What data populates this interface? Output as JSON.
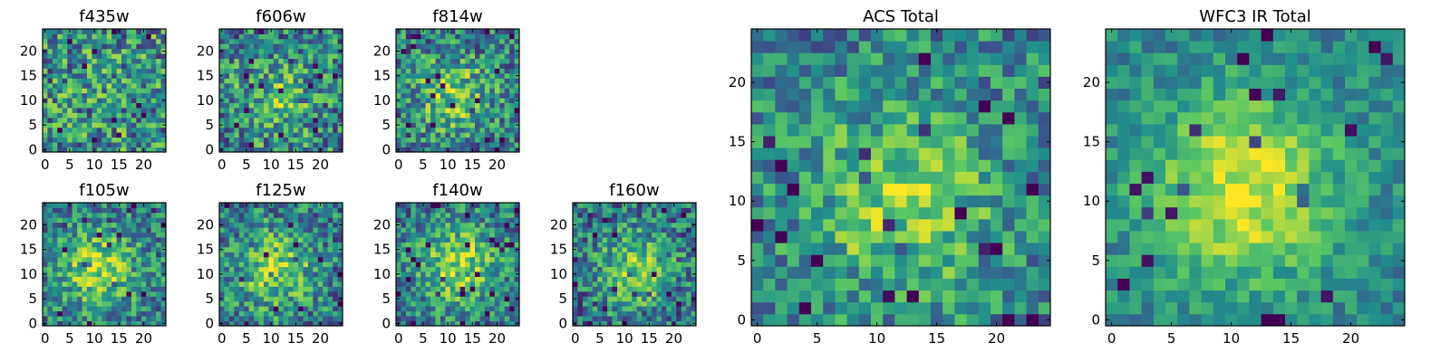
{
  "figure": {
    "colormap": "viridis",
    "colormap_stops": [
      "#440154",
      "#3b528b",
      "#21918c",
      "#5ec962",
      "#fde725"
    ],
    "background": "#ffffff"
  },
  "chart_data": [
    {
      "type": "heatmap",
      "title": "f435w",
      "image_size": [
        25,
        25
      ],
      "xlim": [
        0,
        24
      ],
      "ylim": [
        0,
        24
      ],
      "xticks": [
        0,
        5,
        10,
        15,
        20
      ],
      "yticks": [
        0,
        5,
        10,
        15,
        20
      ],
      "peak": [
        12,
        12
      ],
      "signal_spread": 0.05,
      "noise": 0.36,
      "baseline": 0.5,
      "seed": 11
    },
    {
      "type": "heatmap",
      "title": "f606w",
      "image_size": [
        25,
        25
      ],
      "xlim": [
        0,
        24
      ],
      "ylim": [
        0,
        24
      ],
      "xticks": [
        0,
        5,
        10,
        15,
        20
      ],
      "yticks": [
        0,
        5,
        10,
        15,
        20
      ],
      "peak": [
        11,
        10
      ],
      "signal_spread": 0.22,
      "noise": 0.34,
      "baseline": 0.45,
      "seed": 23
    },
    {
      "type": "heatmap",
      "title": "f814w",
      "image_size": [
        25,
        25
      ],
      "xlim": [
        0,
        24
      ],
      "ylim": [
        0,
        24
      ],
      "xticks": [
        0,
        5,
        10,
        15,
        20
      ],
      "yticks": [
        0,
        5,
        10,
        15,
        20
      ],
      "peak": [
        11,
        11
      ],
      "signal_spread": 0.34,
      "noise": 0.32,
      "baseline": 0.42,
      "seed": 37
    },
    {
      "type": "heatmap",
      "title": "f105w",
      "image_size": [
        25,
        25
      ],
      "xlim": [
        0,
        24
      ],
      "ylim": [
        0,
        24
      ],
      "xticks": [
        0,
        5,
        10,
        15,
        20
      ],
      "yticks": [
        0,
        5,
        10,
        15,
        20
      ],
      "peak": [
        11,
        11
      ],
      "signal_spread": 0.42,
      "noise": 0.28,
      "baseline": 0.42,
      "seed": 41
    },
    {
      "type": "heatmap",
      "title": "f125w",
      "image_size": [
        25,
        25
      ],
      "xlim": [
        0,
        24
      ],
      "ylim": [
        0,
        24
      ],
      "xticks": [
        0,
        5,
        10,
        15,
        20
      ],
      "yticks": [
        0,
        5,
        10,
        15,
        20
      ],
      "peak": [
        11,
        11
      ],
      "signal_spread": 0.38,
      "noise": 0.3,
      "baseline": 0.42,
      "seed": 53
    },
    {
      "type": "heatmap",
      "title": "f140w",
      "image_size": [
        25,
        25
      ],
      "xlim": [
        0,
        24
      ],
      "ylim": [
        0,
        24
      ],
      "xticks": [
        0,
        5,
        10,
        15,
        20
      ],
      "yticks": [
        0,
        5,
        10,
        15,
        20
      ],
      "peak": [
        12,
        12
      ],
      "signal_spread": 0.42,
      "noise": 0.28,
      "baseline": 0.42,
      "seed": 67
    },
    {
      "type": "heatmap",
      "title": "f160w",
      "image_size": [
        25,
        25
      ],
      "xlim": [
        0,
        24
      ],
      "ylim": [
        0,
        24
      ],
      "xticks": [
        0,
        5,
        10,
        15,
        20
      ],
      "yticks": [
        0,
        5,
        10,
        15,
        20
      ],
      "peak": [
        12,
        11
      ],
      "signal_spread": 0.4,
      "noise": 0.3,
      "baseline": 0.38,
      "seed": 79
    },
    {
      "type": "heatmap",
      "title": "ACS Total",
      "image_size": [
        25,
        25
      ],
      "xlim": [
        0,
        24
      ],
      "ylim": [
        0,
        24
      ],
      "xticks": [
        0,
        5,
        10,
        15,
        20
      ],
      "yticks": [
        0,
        5,
        10,
        15,
        20
      ],
      "peak": [
        12,
        10
      ],
      "signal_spread": 0.34,
      "noise": 0.26,
      "baseline": 0.45,
      "seed": 83
    },
    {
      "type": "heatmap",
      "title": "WFC3 IR Total",
      "image_size": [
        25,
        25
      ],
      "xlim": [
        0,
        24
      ],
      "ylim": [
        0,
        24
      ],
      "xticks": [
        0,
        5,
        10,
        15,
        20
      ],
      "yticks": [
        0,
        5,
        10,
        15,
        20
      ],
      "peak": [
        11,
        11
      ],
      "signal_spread": 0.5,
      "noise": 0.16,
      "baseline": 0.45,
      "seed": 97
    }
  ]
}
